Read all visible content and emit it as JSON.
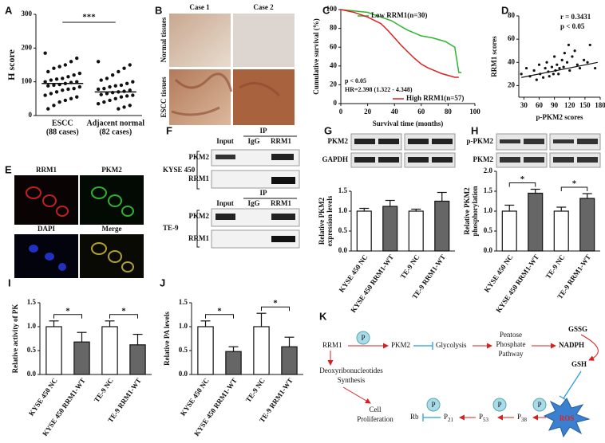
{
  "panel_letters": [
    "A",
    "B",
    "C",
    "D",
    "E",
    "F",
    "G",
    "H",
    "I",
    "J",
    "K"
  ],
  "chart_data": [
    {
      "type": "dotplot",
      "ylabel": "H score",
      "categories": [
        [
          "ESCC",
          "(88 cases)"
        ],
        [
          "Adjacent normal",
          "(82 cases)"
        ]
      ],
      "values": [
        [
          185,
          170,
          160,
          150,
          145,
          140,
          130,
          125,
          120,
          115,
          110,
          108,
          105,
          100,
          100,
          98,
          95,
          92,
          90,
          88,
          85,
          80,
          78,
          75,
          70,
          65,
          60,
          55,
          50,
          45,
          40,
          30,
          20
        ],
        [
          160,
          150,
          140,
          130,
          120,
          110,
          105,
          100,
          95,
          90,
          88,
          85,
          80,
          78,
          75,
          72,
          70,
          68,
          65,
          62,
          60,
          58,
          55,
          50,
          45,
          40,
          35,
          30,
          25,
          20
        ]
      ],
      "medians": [
        95,
        70
      ],
      "significance": "***",
      "color": "#111111",
      "ylim": [
        0,
        300
      ],
      "yticks": [
        0,
        100,
        200,
        300
      ]
    },
    {
      "type": "line",
      "xlabel": "Survival time (months)",
      "ylabel": "Cumulative survival (%)",
      "series": [
        {
          "name": "Low RRM1(n=30)",
          "color": "#2db52d",
          "x": [
            0,
            20,
            30,
            38,
            45,
            50,
            60,
            68,
            78,
            85,
            88,
            90
          ],
          "values": [
            100,
            97,
            92,
            88,
            82,
            78,
            72,
            70,
            66,
            60,
            33,
            33
          ]
        },
        {
          "name": "High RRM1(n=57)",
          "color": "#e02020",
          "x": [
            0,
            10,
            20,
            30,
            35,
            40,
            45,
            50,
            55,
            60,
            65,
            70,
            75,
            80,
            85,
            88
          ],
          "values": [
            100,
            97,
            92,
            85,
            78,
            70,
            62,
            55,
            48,
            42,
            38,
            35,
            32,
            30,
            28,
            28
          ]
        }
      ],
      "annotations": [
        "p < 0.05",
        "HR=2.398 (1.322 - 4.348)"
      ],
      "xlim": [
        0,
        100
      ],
      "xticks": [
        0,
        20,
        40,
        60,
        80,
        100
      ],
      "ylim": [
        0,
        100
      ],
      "yticks": [
        0,
        20,
        40,
        60,
        80,
        100
      ]
    },
    {
      "type": "scatter",
      "xlabel": "p-PKM2 scores",
      "ylabel": "RRM1 scores",
      "x": [
        25,
        35,
        42,
        50,
        55,
        60,
        62,
        68,
        72,
        75,
        78,
        80,
        85,
        88,
        90,
        92,
        95,
        98,
        100,
        105,
        108,
        110,
        115,
        118,
        120,
        125,
        130,
        135,
        140,
        148,
        155,
        160,
        170
      ],
      "values": [
        30,
        35,
        28,
        33,
        25,
        38,
        30,
        27,
        35,
        40,
        32,
        28,
        36,
        30,
        45,
        33,
        38,
        30,
        35,
        42,
        36,
        48,
        40,
        55,
        33,
        45,
        50,
        38,
        35,
        42,
        40,
        55,
        35
      ],
      "trendline": {
        "x": [
          25,
          175
        ],
        "values": [
          27,
          40
        ]
      },
      "annotations": [
        "r = 0.3431",
        "p < 0.05"
      ],
      "color": "#111111",
      "xlim": [
        20,
        180
      ],
      "xticks": [
        30,
        60,
        90,
        120,
        150,
        180
      ],
      "ylim": [
        10,
        80
      ],
      "yticks": [
        20,
        40,
        60,
        80
      ]
    },
    {
      "type": "bar",
      "ylabel": [
        "Relative PKM2",
        "expression levels"
      ],
      "categories": [
        "KYSE 450 NC",
        "KYSE 450 RRM1-WT",
        "TE-9 NC",
        "TE-9 RRM1-WT"
      ],
      "values": [
        1.0,
        1.12,
        1.0,
        1.25
      ],
      "errors": [
        0.07,
        0.15,
        0.05,
        0.22
      ],
      "significance": [],
      "colors": [
        "#ffffff",
        "#666666",
        "#ffffff",
        "#666666"
      ],
      "ylim": [
        0,
        1.5
      ],
      "yticks": [
        {
          "value": 0,
          "label": "0.0"
        },
        {
          "value": 0.5,
          "label": "0.5"
        },
        {
          "value": 1,
          "label": "1.0"
        },
        {
          "value": 1.5,
          "label": "1.5"
        }
      ]
    },
    {
      "type": "bar",
      "ylabel": [
        "Relative PKM2",
        "phosphorylation"
      ],
      "categories": [
        "KYSE 450 NC",
        "KYSE 450 RRM1-WT",
        "TE-9 NC",
        "TE-9 RRM1-WT"
      ],
      "values": [
        1.0,
        1.45,
        1.0,
        1.32
      ],
      "errors": [
        0.15,
        0.1,
        0.1,
        0.12
      ],
      "significance": [
        "*",
        "*"
      ],
      "colors": [
        "#ffffff",
        "#666666",
        "#ffffff",
        "#666666"
      ],
      "ylim": [
        0,
        2
      ],
      "yticks": [
        {
          "value": 0,
          "label": "0.0"
        },
        {
          "value": 0.5,
          "label": "0.5"
        },
        {
          "value": 1,
          "label": "1.0"
        },
        {
          "value": 1.5,
          "label": "1.5"
        },
        {
          "value": 2,
          "label": "2.0"
        }
      ]
    },
    {
      "type": "bar",
      "ylabel": [
        "Relative activity of PK"
      ],
      "categories": [
        "KYSE 450 NC",
        "KYSE 450 RRM1-WT",
        "TE-9 NC",
        "TE-9 RRM1-WT"
      ],
      "values": [
        1.0,
        0.68,
        1.0,
        0.62
      ],
      "errors": [
        0.12,
        0.2,
        0.12,
        0.22
      ],
      "significance": [
        "*",
        "*"
      ],
      "colors": [
        "#ffffff",
        "#666666",
        "#ffffff",
        "#666666"
      ],
      "ylim": [
        0,
        1.5
      ],
      "yticks": [
        {
          "value": 0,
          "label": "0.0"
        },
        {
          "value": 0.5,
          "label": "0.5"
        },
        {
          "value": 1,
          "label": "1.0"
        },
        {
          "value": 1.5,
          "label": "1.5"
        }
      ]
    },
    {
      "type": "bar",
      "ylabel": [
        "Relative PA levels"
      ],
      "categories": [
        "KYSE 450 NC",
        "KYSE 450 RRM1-WT",
        "TE-9 NC",
        "TE-9 RRM1-WT"
      ],
      "values": [
        1.0,
        0.48,
        1.0,
        0.58
      ],
      "errors": [
        0.12,
        0.1,
        0.28,
        0.2
      ],
      "significance": [
        "*",
        "*"
      ],
      "colors": [
        "#ffffff",
        "#666666",
        "#ffffff",
        "#666666"
      ],
      "ylim": [
        0,
        1.5
      ],
      "yticks": [
        {
          "value": 0,
          "label": "0.0"
        },
        {
          "value": 0.5,
          "label": "0.5"
        },
        {
          "value": 1,
          "label": "1.0"
        },
        {
          "value": 1.5,
          "label": "1.5"
        }
      ]
    }
  ],
  "ihc": {
    "columns": [
      "Case 1",
      "Case 2"
    ],
    "rows": [
      "Normal tissues",
      "ESCC tissues"
    ]
  },
  "if_images": [
    "RRM1",
    "PKM2",
    "DAPI",
    "Merge"
  ],
  "co_ip": {
    "ip": "IP",
    "columns": [
      "Input",
      "IgG",
      "RRM1"
    ],
    "cell_lines": [
      "KYSE 450",
      "TE-9"
    ],
    "bands": [
      "PKM2",
      "RRM1"
    ]
  },
  "blots": {
    "g": [
      "PKM2",
      "GAPDH"
    ],
    "h": [
      "p-PKM2",
      "PKM2"
    ]
  },
  "pathway": {
    "rrm1": "RRM1",
    "phospho": "P",
    "pkm2": "PKM2",
    "glycolysis": "Glycolysis",
    "ppp": [
      "Pentose",
      "Phosphate",
      "Pathway"
    ],
    "nadph": "NADPH",
    "gssg": "GSSG",
    "gsh": "GSH",
    "ros": "ROS",
    "dnts": [
      "Deoxyribonucleotides",
      "Synthesis"
    ],
    "prolif": [
      "Cell",
      "Proliferation"
    ],
    "rb": "Rb",
    "p21": [
      "P",
      "21"
    ],
    "p53": [
      "P",
      "53"
    ],
    "p38": [
      "P",
      "38"
    ]
  }
}
